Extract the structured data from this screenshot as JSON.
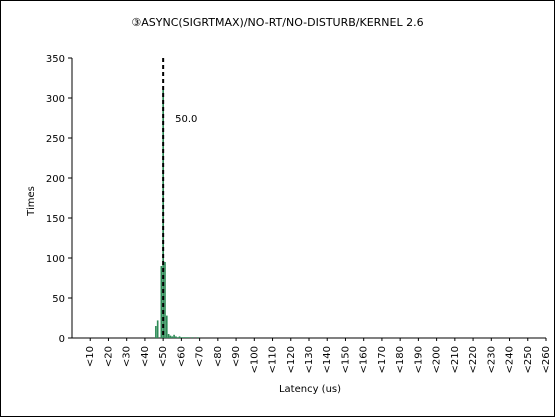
{
  "chart_data": {
    "type": "bar",
    "title": "③ASYNC(SIGRTMAX)/NO-RT/NO-DISTURB/KERNEL 2.6",
    "xlabel": "Latency (us)",
    "ylabel": "Times",
    "ylim": [
      0,
      350
    ],
    "yticks": [
      0,
      50,
      100,
      150,
      200,
      250,
      300,
      350
    ],
    "grid": false,
    "legend": "none",
    "colors": {
      "bar": "#2e8b57",
      "axis": "#000000",
      "marker": "#000000"
    },
    "categories": [
      "<10",
      "<20",
      "<30",
      "<40",
      "<50",
      "<60",
      "<70",
      "<80",
      "<90",
      "<100",
      "<110",
      "<120",
      "<130",
      "<140",
      "<150",
      "<160",
      "<170",
      "<180",
      "<190",
      "<200",
      "<210",
      "<220",
      "<230",
      "<240",
      "<250",
      "<260"
    ],
    "x": [
      42,
      43,
      44,
      45,
      46,
      47,
      48,
      49,
      50,
      51,
      52,
      53,
      54,
      55,
      56,
      57,
      58,
      59,
      60,
      61,
      62,
      63,
      64,
      65,
      66,
      67,
      68,
      69,
      70,
      71,
      72
    ],
    "values": [
      0,
      0,
      0,
      0,
      15,
      22,
      0,
      90,
      310,
      95,
      28,
      5,
      3,
      2,
      4,
      2,
      1,
      2,
      1,
      1,
      1,
      1,
      1,
      0,
      1,
      0,
      0,
      1,
      0,
      0,
      0
    ],
    "marker": {
      "x": 50,
      "label": "50.0"
    }
  }
}
